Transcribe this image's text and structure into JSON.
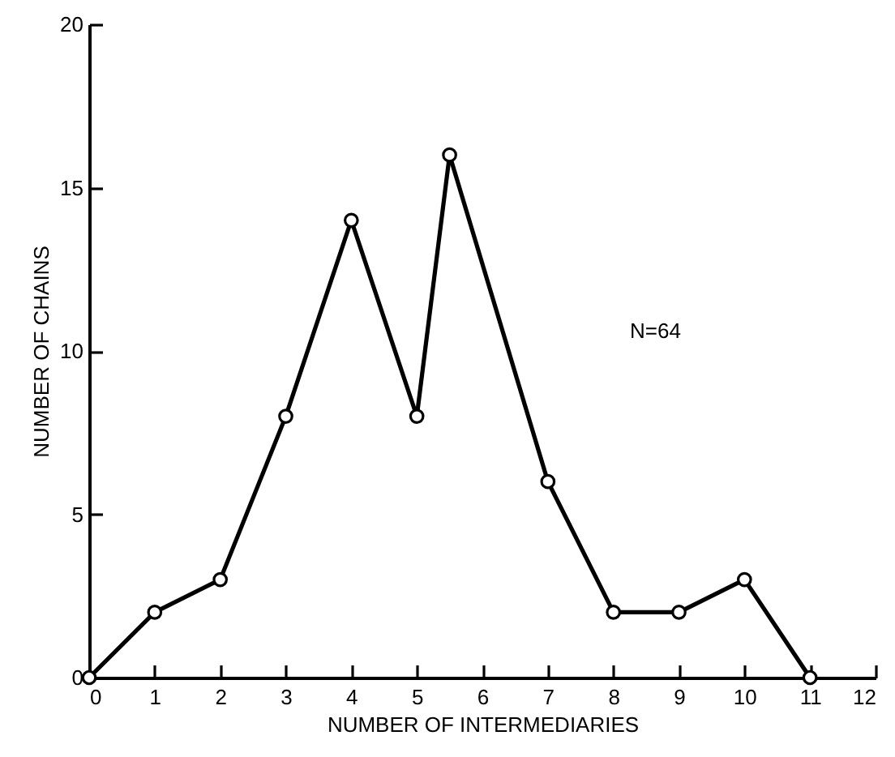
{
  "chart_data": {
    "type": "line",
    "xlabel": "NUMBER OF INTERMEDIARIES",
    "ylabel": "NUMBER OF CHAINS",
    "x": [
      0,
      1,
      2,
      3,
      4,
      5,
      5.5,
      7,
      8,
      9,
      10,
      11
    ],
    "series": [
      {
        "color": "#000000",
        "values": [
          0,
          2,
          3,
          8,
          14,
          8,
          16,
          6,
          2,
          2,
          3,
          0
        ]
      }
    ],
    "xlim": [
      0,
      12
    ],
    "xticks": [
      0,
      1,
      2,
      3,
      4,
      5,
      6,
      7,
      8,
      9,
      10,
      11,
      12
    ],
    "ylim": [
      0,
      20
    ],
    "yticks": [
      0,
      5,
      10,
      15,
      20
    ],
    "annotations": [
      "N=64"
    ],
    "marker": "circle",
    "line_style": "solid",
    "grid": false
  }
}
